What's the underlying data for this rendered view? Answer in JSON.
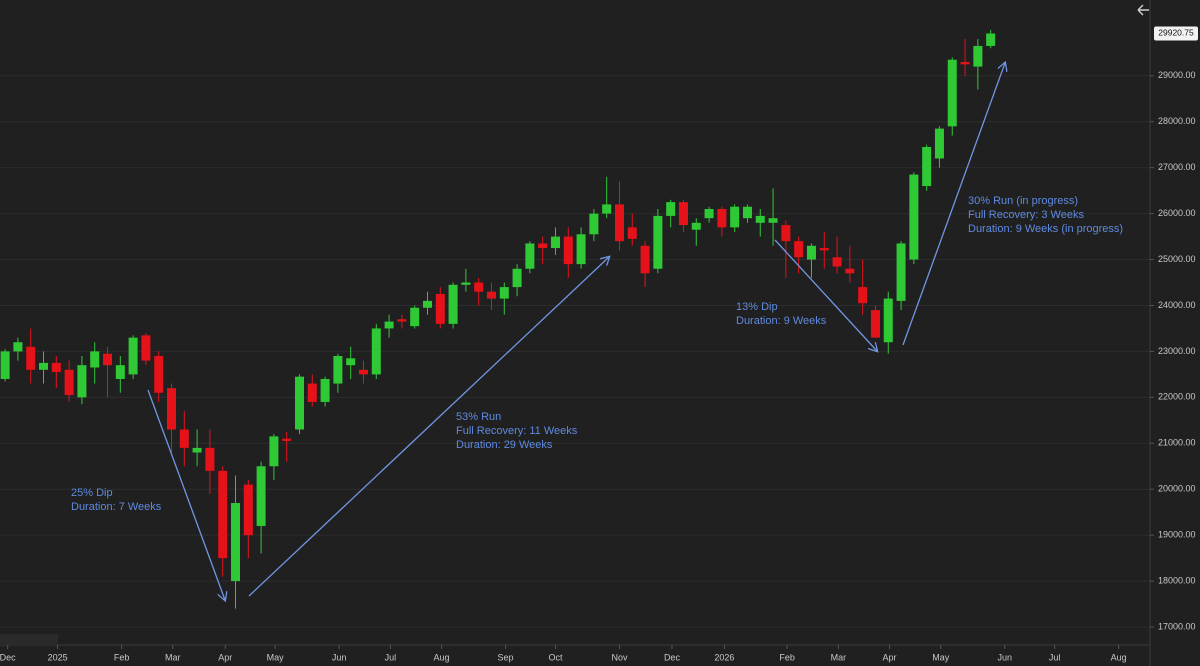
{
  "chart_data": {
    "type": "candlestick",
    "up_color": "#30c936",
    "down_color": "#e5121a",
    "grid": true,
    "x": [
      0,
      1,
      2,
      3,
      4,
      5,
      6,
      7,
      8,
      9,
      10,
      11,
      12,
      13,
      14,
      15,
      16,
      17,
      18,
      19,
      20,
      21,
      22,
      23,
      24,
      25,
      26,
      27,
      28,
      29,
      30,
      31,
      32,
      33,
      34,
      35,
      36,
      37,
      38,
      39,
      40,
      41,
      42,
      43,
      44,
      45,
      46,
      47,
      48,
      49,
      50,
      51,
      52,
      53,
      54,
      55,
      56,
      57,
      58,
      59,
      60,
      61,
      62,
      63,
      64,
      65,
      66,
      67,
      68,
      69,
      70,
      71,
      72,
      73,
      74,
      75,
      76,
      77
    ],
    "open": [
      22400,
      23000,
      23100,
      22600,
      22750,
      22600,
      22000,
      22650,
      22950,
      22400,
      22500,
      23350,
      22900,
      22200,
      21300,
      20800,
      20900,
      20400,
      18000,
      20100,
      19200,
      20500,
      21100,
      21300,
      22300,
      21900,
      22300,
      22700,
      22600,
      22500,
      23500,
      23700,
      23550,
      23950,
      24250,
      23600,
      24450,
      24500,
      24300,
      24150,
      24400,
      24800,
      25350,
      25250,
      25500,
      24900,
      25550,
      26000,
      26200,
      25700,
      25300,
      24800,
      25950,
      26250,
      25650,
      25900,
      26100,
      25700,
      25900,
      25800,
      25800,
      25750,
      25400,
      25000,
      25250,
      25050,
      24800,
      24400,
      23900,
      23200,
      24100,
      25000,
      26600,
      27200,
      27900,
      29300,
      29200,
      29650
    ],
    "high": [
      23050,
      23300,
      23500,
      23000,
      22900,
      22800,
      22900,
      23200,
      23100,
      22900,
      23350,
      23400,
      23000,
      22300,
      21700,
      21300,
      21300,
      20500,
      20300,
      20200,
      20600,
      21200,
      21250,
      22500,
      22500,
      22450,
      22950,
      23100,
      22800,
      23600,
      23800,
      23800,
      24000,
      24300,
      24400,
      24500,
      24800,
      24600,
      24500,
      24500,
      24900,
      25400,
      25500,
      25700,
      25700,
      25700,
      26100,
      26800,
      26700,
      26000,
      25400,
      26100,
      26300,
      26300,
      25900,
      26150,
      26150,
      26200,
      26200,
      26100,
      26550,
      25850,
      25500,
      25350,
      25600,
      25500,
      25300,
      25000,
      24000,
      24300,
      25400,
      26900,
      27500,
      27900,
      29400,
      29800,
      29800,
      30000
    ],
    "low": [
      22350,
      22800,
      22300,
      22300,
      22200,
      21900,
      21850,
      22300,
      22000,
      22100,
      22400,
      22700,
      21900,
      20800,
      20500,
      20500,
      19900,
      18100,
      17400,
      18500,
      18600,
      20200,
      20600,
      21200,
      21800,
      21800,
      22100,
      22400,
      22300,
      22400,
      23300,
      23500,
      23500,
      23800,
      23500,
      23500,
      24300,
      24000,
      23900,
      23800,
      24200,
      24700,
      24900,
      25100,
      24600,
      24800,
      25400,
      25900,
      25200,
      25300,
      24400,
      24700,
      25700,
      25600,
      25300,
      25800,
      25500,
      25600,
      25800,
      25500,
      25300,
      24600,
      24700,
      24600,
      24800,
      24700,
      24500,
      23800,
      23300,
      22950,
      23900,
      24900,
      26500,
      27000,
      27700,
      29000,
      28700,
      29600
    ],
    "close": [
      23000,
      23200,
      22600,
      22750,
      22550,
      22050,
      22700,
      23000,
      22700,
      22700,
      23300,
      22800,
      22100,
      21300,
      20900,
      20900,
      20400,
      18500,
      19700,
      19000,
      20500,
      21150,
      21050,
      22450,
      21900,
      22400,
      22900,
      22850,
      22500,
      23500,
      23650,
      23650,
      23950,
      24100,
      23600,
      24450,
      24500,
      24300,
      24150,
      24400,
      24800,
      25350,
      25250,
      25500,
      24900,
      25550,
      26000,
      26200,
      25400,
      25450,
      24700,
      25950,
      26250,
      25750,
      25800,
      26100,
      25700,
      26150,
      26150,
      25950,
      25900,
      25400,
      25050,
      25300,
      25200,
      24850,
      24700,
      24050,
      23300,
      24150,
      25350,
      26850,
      27450,
      27850,
      29350,
      29250,
      29650,
      29920.75
    ],
    "xlim": [
      -0.4,
      89.45
    ],
    "xticks": [
      {
        "value": 0.2,
        "label": "Dec"
      },
      {
        "value": 4.1,
        "label": "2025"
      },
      {
        "value": 9.1,
        "label": "Feb"
      },
      {
        "value": 13.1,
        "label": "Mar"
      },
      {
        "value": 17.2,
        "label": "Apr"
      },
      {
        "value": 21.1,
        "label": "May"
      },
      {
        "value": 26.1,
        "label": "Jun"
      },
      {
        "value": 30.1,
        "label": "Jul"
      },
      {
        "value": 34.1,
        "label": "Aug"
      },
      {
        "value": 39.1,
        "label": "Sep"
      },
      {
        "value": 43.0,
        "label": "Oct"
      },
      {
        "value": 48.0,
        "label": "Nov"
      },
      {
        "value": 52.1,
        "label": "Dec"
      },
      {
        "value": 56.2,
        "label": "2026"
      },
      {
        "value": 61.1,
        "label": "Feb"
      },
      {
        "value": 65.1,
        "label": "Mar"
      },
      {
        "value": 69.1,
        "label": "Apr"
      },
      {
        "value": 73.1,
        "label": "May"
      },
      {
        "value": 78.1,
        "label": "Jun"
      },
      {
        "value": 82.0,
        "label": "Jul"
      },
      {
        "value": 87.0,
        "label": "Aug"
      }
    ],
    "ylim": [
      16500,
      30650
    ],
    "yticks": [
      {
        "value": 17000,
        "label": "17000.00"
      },
      {
        "value": 18000,
        "label": "18000.00"
      },
      {
        "value": 19000,
        "label": "19000.00"
      },
      {
        "value": 20000,
        "label": "20000.00"
      },
      {
        "value": 21000,
        "label": "21000.00"
      },
      {
        "value": 22000,
        "label": "22000.00"
      },
      {
        "value": 23000,
        "label": "23000.00"
      },
      {
        "value": 24000,
        "label": "24000.00"
      },
      {
        "value": 25000,
        "label": "25000.00"
      },
      {
        "value": 26000,
        "label": "26000.00"
      },
      {
        "value": 27000,
        "label": "27000.00"
      },
      {
        "value": 28000,
        "label": "28000.00"
      },
      {
        "value": 29000,
        "label": "29000.00"
      }
    ],
    "annotations": [
      {
        "lines": [
          "25% Dip",
          "Duration: 7 Weeks"
        ]
      },
      {
        "lines": [
          "53% Run",
          "Full Recovery:  11 Weeks",
          "Duration: 29 Weeks"
        ]
      },
      {
        "lines": [
          "13% Dip",
          "Duration: 9 Weeks"
        ]
      },
      {
        "lines": [
          "30% Run (in progress)",
          "Full Recovery:  3 Weeks",
          "Duration: 9 Weeks (in progress)"
        ]
      }
    ]
  }
}
